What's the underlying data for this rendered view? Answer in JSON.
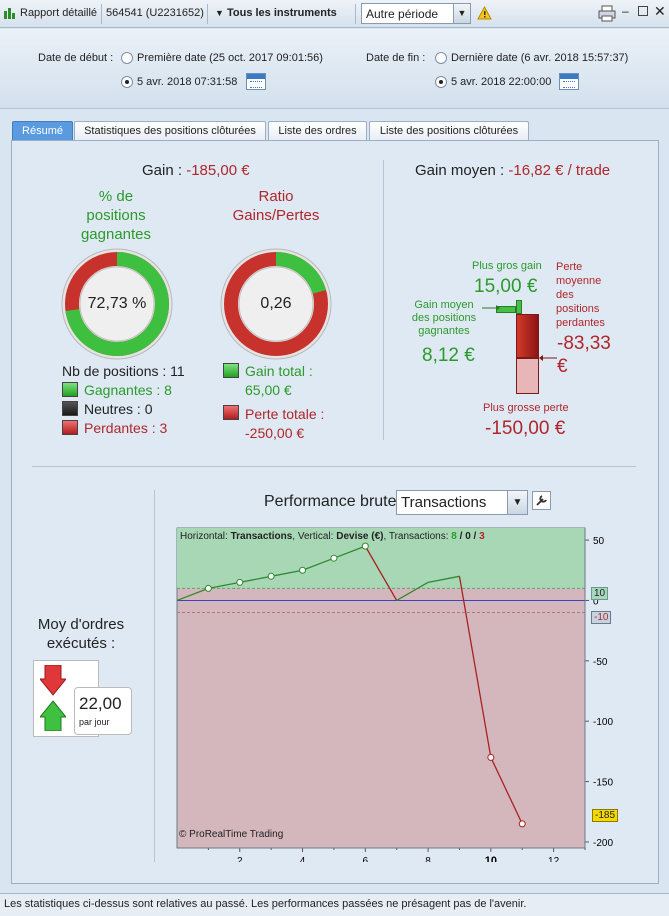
{
  "toolbar": {
    "report_label": "Rapport détaillé",
    "account": "564541 (U2231652)",
    "instruments_label": "Tous les instruments",
    "period_value": "Autre période"
  },
  "dates": {
    "start_label": "Date de début :",
    "start_option1": "Première date (25 oct. 2017 09:01:56)",
    "start_option2": "5 avr. 2018 07:31:58",
    "end_label": "Date de fin :",
    "end_option1": "Dernière date (6 avr. 2018 15:57:37)",
    "end_option2": "5 avr. 2018 22:00:00"
  },
  "tabs": [
    "Résumé",
    "Statistiques des positions clôturées",
    "Liste des ordres",
    "Liste des positions clôturées"
  ],
  "summary": {
    "gain_label": "Gain :",
    "gain_value": "-185,00 €",
    "win_pct_title": "% de positions gagnantes",
    "win_pct_value": "72,73 %",
    "win_fraction": 0.7273,
    "ratio_title": "Ratio Gains/Pertes",
    "ratio_value": "0,26",
    "ratio_fraction": 0.206,
    "nb_positions": "Nb de positions : 11",
    "winners": "Gagnantes : 8",
    "neutral": "Neutres : 0",
    "losers": "Perdantes : 3",
    "gain_total_label": "Gain total :",
    "gain_total_value": "65,00 €",
    "loss_total_label": "Perte totale :",
    "loss_total_value": "-250,00 €"
  },
  "average": {
    "label": "Gain moyen :",
    "value": "-16,82 € / trade",
    "max_gain_label": "Plus gros gain",
    "max_gain_value": "15,00 €",
    "avg_win_label": "Gain moyen des positions gagnantes",
    "avg_win_value": "8,12 €",
    "avg_loss_label": "Perte moyenne des positions perdantes",
    "avg_loss_value": "-83,33 €",
    "max_loss_label": "Plus grosse perte",
    "max_loss_value": "-150,00 €"
  },
  "orders": {
    "label": "Moy d'ordres exécutés :",
    "value": "22,00",
    "unit": "par jour"
  },
  "performance": {
    "label": "Performance brute",
    "select_value": "Transactions",
    "header_h": "Horizontal:",
    "header_h_val": "Transactions",
    "header_v": ", Vertical:",
    "header_v_val": "Devise (€)",
    "header_t": ", Transactions:",
    "header_w": "8",
    "header_n": "0",
    "header_l": "3",
    "header_sep": "/",
    "copyright": "© ProRealTime Trading",
    "tag_top": "10",
    "tag_bottom": "-10",
    "tag_last": "-185"
  },
  "chart_data": {
    "type": "line",
    "x": [
      0,
      1,
      2,
      3,
      4,
      5,
      6,
      7,
      8,
      9,
      10,
      11
    ],
    "y": [
      0,
      10,
      15,
      20,
      25,
      35,
      45,
      0,
      15,
      20,
      -130,
      -185
    ],
    "markers_x": [
      1,
      2,
      3,
      4,
      5,
      6,
      10,
      11
    ],
    "xlim": [
      0,
      13
    ],
    "ylim": [
      -205,
      60
    ],
    "x_ticks": [
      2,
      4,
      6,
      8,
      10,
      12
    ],
    "y_ticks": [
      50,
      0,
      -50,
      -100,
      -150,
      -200
    ],
    "bands": [
      10,
      -10
    ]
  },
  "status": "Les statistiques ci-dessus sont relatives au passé. Les performances passées ne présagent pas de l'avenir."
}
